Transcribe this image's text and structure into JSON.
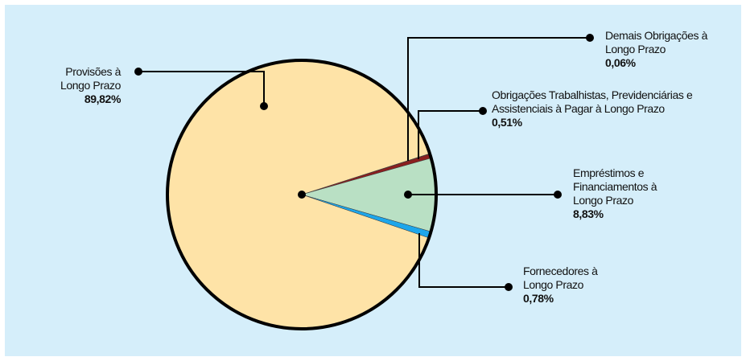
{
  "chart_data": {
    "type": "pie",
    "categories": [
      "Demais Obrigações à Longo Prazo",
      "Obrigações Trabalhistas, Previdenciárias e Assistenciais à Pagar à Longo Prazo",
      "Empréstimos e Financiamentos à Longo Prazo",
      "Fornecedores à Longo Prazo",
      "Provisões à Longo Prazo"
    ],
    "values": [
      0.06,
      0.51,
      8.83,
      0.78,
      89.82
    ],
    "value_labels": [
      "0,06%",
      "0,51%",
      "8,83%",
      "0,78%",
      "89,82%"
    ],
    "colors": [
      "#c8502a",
      "#8b1f1f",
      "#b9e0c4",
      "#1ea6ea",
      "#fee3a7"
    ]
  }
}
